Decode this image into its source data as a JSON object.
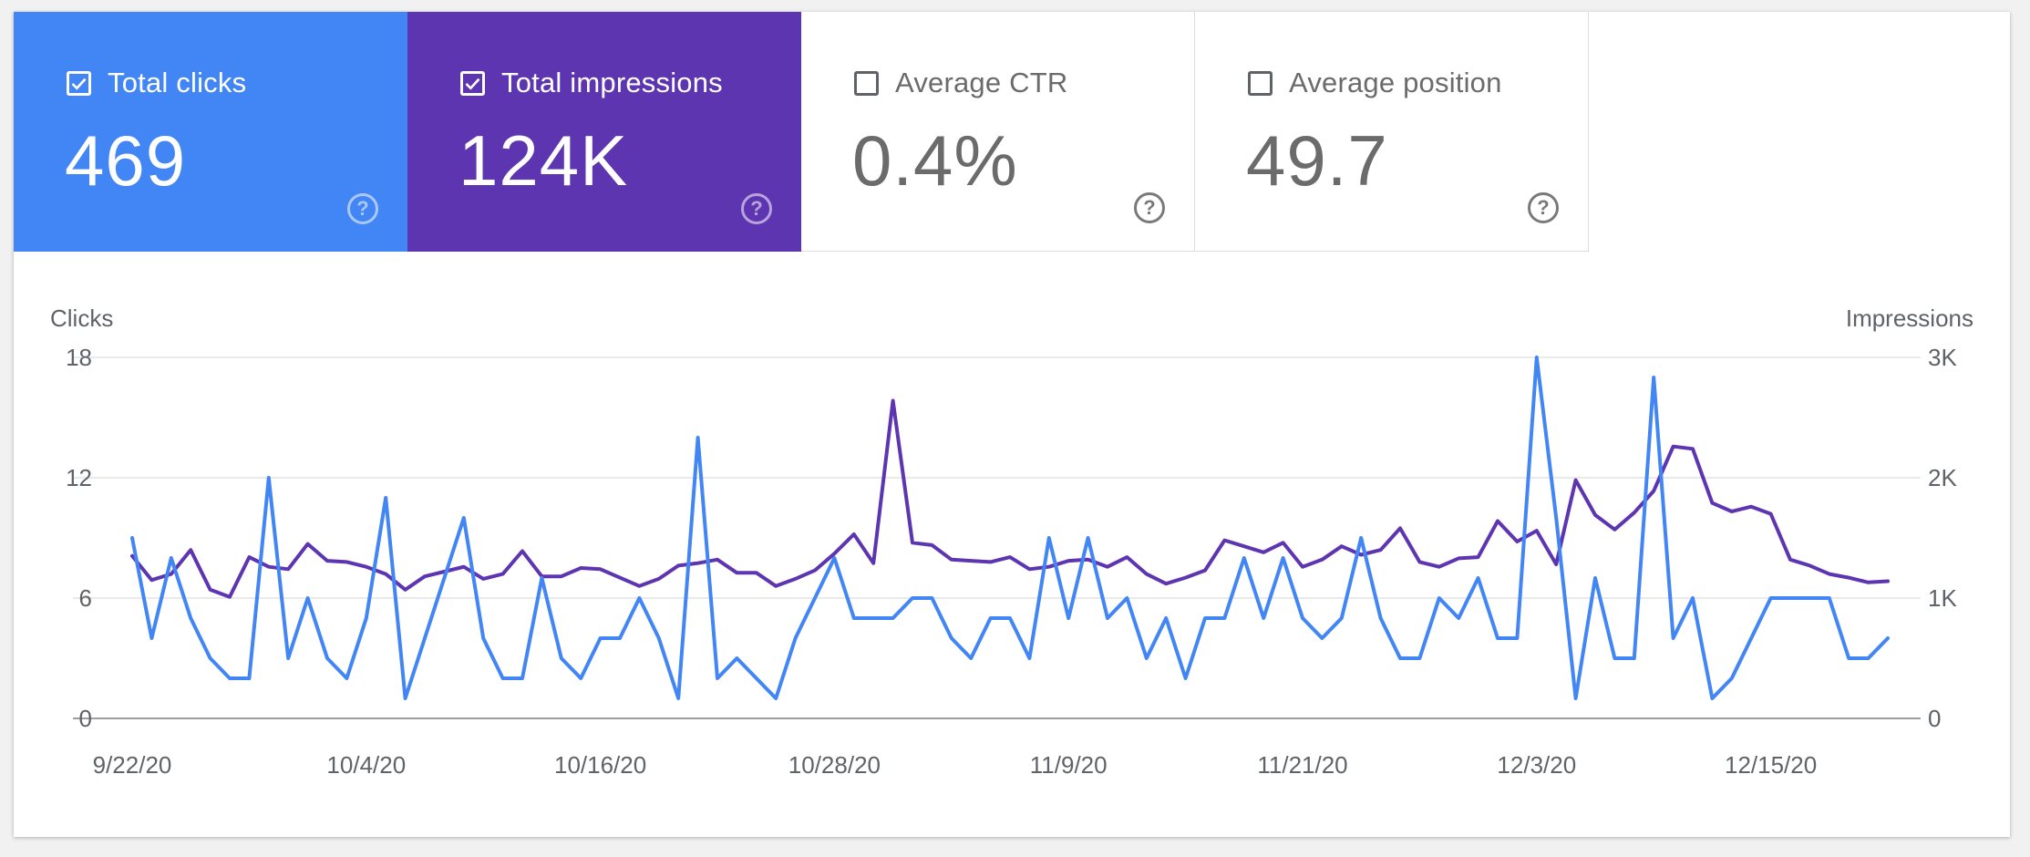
{
  "metrics": [
    {
      "key": "clicks",
      "label": "Total clicks",
      "value": "469",
      "checked": true,
      "color": "#4285f4"
    },
    {
      "key": "impressions",
      "label": "Total impressions",
      "value": "124K",
      "checked": true,
      "color": "#5e35b1"
    },
    {
      "key": "ctr",
      "label": "Average CTR",
      "value": "0.4%",
      "checked": false
    },
    {
      "key": "position",
      "label": "Average position",
      "value": "49.7",
      "checked": false
    }
  ],
  "help_glyph": "?",
  "chart_data": {
    "type": "line",
    "left_axis_title": "Clicks",
    "right_axis_title": "Impressions",
    "grid": true,
    "x_tick_labels": [
      "9/22/20",
      "10/4/20",
      "10/16/20",
      "10/28/20",
      "11/9/20",
      "11/21/20",
      "12/3/20",
      "12/15/20"
    ],
    "x_tick_index": [
      0,
      12,
      24,
      36,
      48,
      60,
      72,
      84
    ],
    "y_left": {
      "ticks": [
        0,
        6,
        12,
        18
      ],
      "tick_labels": [
        "0",
        "6",
        "12",
        "18"
      ],
      "range": [
        0,
        18
      ]
    },
    "y_right": {
      "ticks": [
        0,
        1000,
        2000,
        3000
      ],
      "tick_labels": [
        "0",
        "1K",
        "2K",
        "3K"
      ],
      "range": [
        0,
        3000
      ]
    },
    "x_start": "2020-09-22",
    "series": [
      {
        "name": "Clicks",
        "axis": "left",
        "color": "#4285f4",
        "values": [
          9,
          4,
          8,
          5,
          3,
          2,
          2,
          12,
          3,
          6,
          3,
          2,
          5,
          11,
          1,
          4,
          7,
          10,
          4,
          2,
          2,
          7,
          3,
          2,
          4,
          4,
          6,
          4,
          1,
          14,
          2,
          3,
          2,
          1,
          4,
          6,
          8,
          5,
          5,
          5,
          6,
          6,
          4,
          3,
          5,
          5,
          3,
          9,
          5,
          9,
          5,
          6,
          3,
          5,
          2,
          5,
          5,
          8,
          5,
          8,
          5,
          4,
          5,
          9,
          5,
          3,
          3,
          6,
          5,
          7,
          4,
          4,
          18,
          10,
          1,
          7,
          3,
          3,
          17,
          4,
          6,
          1,
          2,
          4,
          6,
          6,
          6,
          6,
          3,
          3,
          4
        ]
      },
      {
        "name": "Impressions",
        "axis": "right",
        "color": "#5e35b1",
        "values": [
          1350,
          1150,
          1200,
          1400,
          1070,
          1010,
          1340,
          1260,
          1240,
          1450,
          1310,
          1300,
          1260,
          1200,
          1070,
          1180,
          1220,
          1260,
          1160,
          1200,
          1390,
          1180,
          1180,
          1250,
          1240,
          1170,
          1100,
          1160,
          1270,
          1290,
          1320,
          1210,
          1210,
          1100,
          1160,
          1230,
          1370,
          1530,
          1290,
          2640,
          1460,
          1440,
          1320,
          1310,
          1300,
          1340,
          1240,
          1260,
          1310,
          1320,
          1260,
          1340,
          1200,
          1120,
          1170,
          1230,
          1480,
          1430,
          1380,
          1460,
          1260,
          1320,
          1430,
          1360,
          1400,
          1580,
          1300,
          1260,
          1330,
          1340,
          1640,
          1470,
          1560,
          1280,
          1980,
          1690,
          1570,
          1710,
          1890,
          2260,
          2240,
          1790,
          1720,
          1760,
          1700,
          1320,
          1270,
          1200,
          1170,
          1130,
          1140
        ]
      }
    ]
  }
}
